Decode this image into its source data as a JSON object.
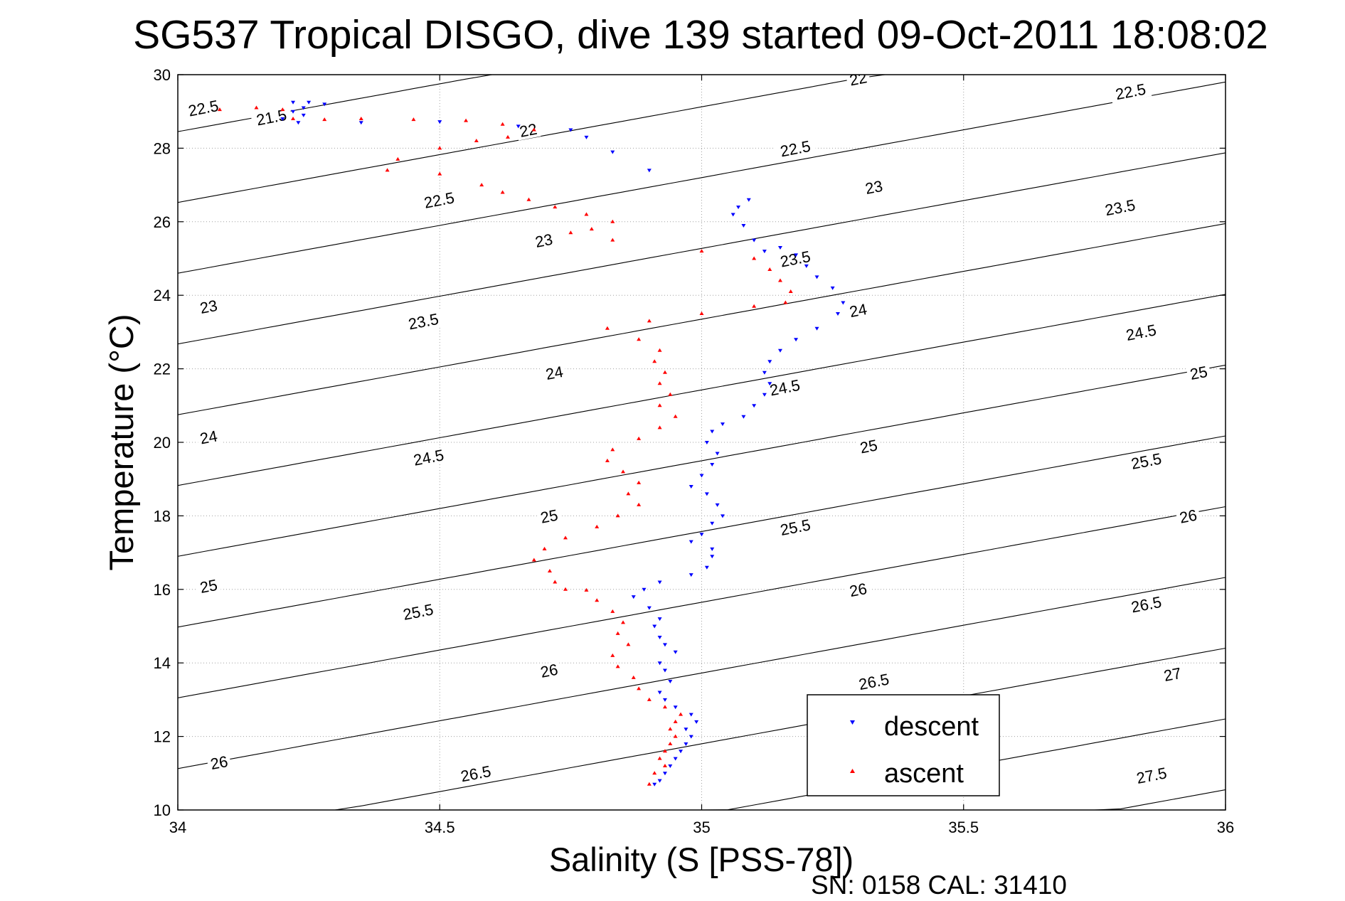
{
  "chart_data": {
    "type": "scatter",
    "title": "SG537 Tropical DISGO, dive 139 started 09-Oct-2011 18:08:02",
    "xlabel": "Salinity (S [PSS-78])",
    "ylabel": "Temperature (°C)",
    "xlim": [
      34,
      36
    ],
    "ylim": [
      10,
      30
    ],
    "xticks": [
      "34",
      "34.5",
      "35",
      "35.5",
      "36"
    ],
    "yticks": [
      "10",
      "12",
      "14",
      "16",
      "18",
      "20",
      "22",
      "24",
      "26",
      "28",
      "30"
    ],
    "grid": true,
    "legend_position": "bottom-right",
    "footer": "SN: 0158  CAL: 31410",
    "colors": {
      "descent": "#0000ff",
      "ascent": "#ff0000",
      "contour": "#000000",
      "grid": "#a0a0a0"
    },
    "series": [
      {
        "name": "descent",
        "marker": "triangle-down",
        "color": "#0000ff",
        "points": [
          [
            34.22,
            29.25
          ],
          [
            34.25,
            29.25
          ],
          [
            34.28,
            29.2
          ],
          [
            34.24,
            29.1
          ],
          [
            34.22,
            29.0
          ],
          [
            34.24,
            28.9
          ],
          [
            34.2,
            28.8
          ],
          [
            34.23,
            28.7
          ],
          [
            34.35,
            28.7
          ],
          [
            34.5,
            28.72
          ],
          [
            34.65,
            28.6
          ],
          [
            34.75,
            28.5
          ],
          [
            34.78,
            28.3
          ],
          [
            34.83,
            27.9
          ],
          [
            34.9,
            27.4
          ],
          [
            35.09,
            26.6
          ],
          [
            35.07,
            26.4
          ],
          [
            35.06,
            26.2
          ],
          [
            35.08,
            25.9
          ],
          [
            35.1,
            25.5
          ],
          [
            35.12,
            25.2
          ],
          [
            35.15,
            25.3
          ],
          [
            35.18,
            25.1
          ],
          [
            35.2,
            24.8
          ],
          [
            35.22,
            24.5
          ],
          [
            35.25,
            24.2
          ],
          [
            35.27,
            23.8
          ],
          [
            35.26,
            23.5
          ],
          [
            35.22,
            23.1
          ],
          [
            35.18,
            22.8
          ],
          [
            35.15,
            22.5
          ],
          [
            35.13,
            22.2
          ],
          [
            35.12,
            21.9
          ],
          [
            35.13,
            21.6
          ],
          [
            35.12,
            21.3
          ],
          [
            35.1,
            21.0
          ],
          [
            35.08,
            20.7
          ],
          [
            35.04,
            20.5
          ],
          [
            35.02,
            20.3
          ],
          [
            35.01,
            20.0
          ],
          [
            35.03,
            19.7
          ],
          [
            35.02,
            19.4
          ],
          [
            35.0,
            19.1
          ],
          [
            34.98,
            18.8
          ],
          [
            35.01,
            18.6
          ],
          [
            35.03,
            18.3
          ],
          [
            35.04,
            18.0
          ],
          [
            35.02,
            17.8
          ],
          [
            35.0,
            17.5
          ],
          [
            34.98,
            17.3
          ],
          [
            35.02,
            17.1
          ],
          [
            35.02,
            16.9
          ],
          [
            35.01,
            16.6
          ],
          [
            34.98,
            16.4
          ],
          [
            34.92,
            16.2
          ],
          [
            34.89,
            16.0
          ],
          [
            34.87,
            15.8
          ],
          [
            34.9,
            15.5
          ],
          [
            34.92,
            15.2
          ],
          [
            34.91,
            15.0
          ],
          [
            34.92,
            14.7
          ],
          [
            34.93,
            14.5
          ],
          [
            34.95,
            14.3
          ],
          [
            34.92,
            14.0
          ],
          [
            34.93,
            13.8
          ],
          [
            34.94,
            13.5
          ],
          [
            34.92,
            13.2
          ],
          [
            34.93,
            13.0
          ],
          [
            34.95,
            12.8
          ],
          [
            34.98,
            12.6
          ],
          [
            34.99,
            12.4
          ],
          [
            34.97,
            12.2
          ],
          [
            34.98,
            12.0
          ],
          [
            34.97,
            11.8
          ],
          [
            34.96,
            11.6
          ],
          [
            34.95,
            11.4
          ],
          [
            34.94,
            11.2
          ],
          [
            34.93,
            11.0
          ],
          [
            34.92,
            10.8
          ],
          [
            34.91,
            10.7
          ]
        ]
      },
      {
        "name": "ascent",
        "marker": "triangle-up",
        "color": "#ff0000",
        "points": [
          [
            34.08,
            29.05
          ],
          [
            34.15,
            29.1
          ],
          [
            34.2,
            29.05
          ],
          [
            34.22,
            28.8
          ],
          [
            34.28,
            28.78
          ],
          [
            34.35,
            28.8
          ],
          [
            34.45,
            28.78
          ],
          [
            34.55,
            28.75
          ],
          [
            34.62,
            28.65
          ],
          [
            34.68,
            28.5
          ],
          [
            34.63,
            28.3
          ],
          [
            34.57,
            28.2
          ],
          [
            34.5,
            28.0
          ],
          [
            34.42,
            27.7
          ],
          [
            34.4,
            27.4
          ],
          [
            34.5,
            27.3
          ],
          [
            34.58,
            27.0
          ],
          [
            34.62,
            26.8
          ],
          [
            34.67,
            26.6
          ],
          [
            34.72,
            26.4
          ],
          [
            34.78,
            26.2
          ],
          [
            34.83,
            26.0
          ],
          [
            34.79,
            25.8
          ],
          [
            34.75,
            25.7
          ],
          [
            34.83,
            25.5
          ],
          [
            35.0,
            25.2
          ],
          [
            35.1,
            25.0
          ],
          [
            35.13,
            24.7
          ],
          [
            35.15,
            24.4
          ],
          [
            35.17,
            24.1
          ],
          [
            35.16,
            23.8
          ],
          [
            35.1,
            23.7
          ],
          [
            35.0,
            23.5
          ],
          [
            34.9,
            23.3
          ],
          [
            34.82,
            23.1
          ],
          [
            34.88,
            22.8
          ],
          [
            34.92,
            22.5
          ],
          [
            34.91,
            22.2
          ],
          [
            34.93,
            21.9
          ],
          [
            34.92,
            21.6
          ],
          [
            34.94,
            21.3
          ],
          [
            34.92,
            21.0
          ],
          [
            34.95,
            20.7
          ],
          [
            34.92,
            20.4
          ],
          [
            34.88,
            20.1
          ],
          [
            34.83,
            19.8
          ],
          [
            34.82,
            19.5
          ],
          [
            34.85,
            19.2
          ],
          [
            34.88,
            18.9
          ],
          [
            34.86,
            18.6
          ],
          [
            34.88,
            18.3
          ],
          [
            34.84,
            18.0
          ],
          [
            34.8,
            17.7
          ],
          [
            34.74,
            17.4
          ],
          [
            34.7,
            17.1
          ],
          [
            34.68,
            16.8
          ],
          [
            34.71,
            16.5
          ],
          [
            34.72,
            16.2
          ],
          [
            34.74,
            16.0
          ],
          [
            34.78,
            15.98
          ],
          [
            34.8,
            15.7
          ],
          [
            34.83,
            15.4
          ],
          [
            34.85,
            15.1
          ],
          [
            34.84,
            14.8
          ],
          [
            34.86,
            14.5
          ],
          [
            34.83,
            14.2
          ],
          [
            34.84,
            13.9
          ],
          [
            34.87,
            13.6
          ],
          [
            34.88,
            13.3
          ],
          [
            34.9,
            13.0
          ],
          [
            34.93,
            12.8
          ],
          [
            34.96,
            12.6
          ],
          [
            34.95,
            12.4
          ],
          [
            34.94,
            12.2
          ],
          [
            34.95,
            12.0
          ],
          [
            34.94,
            11.8
          ],
          [
            34.93,
            11.6
          ],
          [
            34.92,
            11.4
          ],
          [
            34.93,
            11.2
          ],
          [
            34.91,
            11.0
          ],
          [
            34.9,
            10.7
          ]
        ]
      }
    ],
    "contour_lines": {
      "levels": [
        "21.5",
        "22",
        "22.5",
        "23",
        "23.5",
        "24",
        "24.5",
        "25",
        "25.5",
        "26",
        "26.5",
        "27",
        "27.5"
      ],
      "labels": [
        {
          "text": "21.5",
          "s": 34.18,
          "t": 28.75
        },
        {
          "text": "22",
          "s": 34.67,
          "t": 28.4
        },
        {
          "text": "22",
          "s": 35.3,
          "t": 29.8
        },
        {
          "text": "22.5",
          "s": 34.05,
          "t": 29.0
        },
        {
          "text": "22.5",
          "s": 34.5,
          "t": 26.5
        },
        {
          "text": "22.5",
          "s": 35.18,
          "t": 27.9
        },
        {
          "text": "22.5",
          "s": 35.82,
          "t": 29.45
        },
        {
          "text": "23",
          "s": 34.06,
          "t": 23.6
        },
        {
          "text": "23",
          "s": 34.7,
          "t": 25.4
        },
        {
          "text": "23",
          "s": 35.33,
          "t": 26.85
        },
        {
          "text": "23.5",
          "s": 34.47,
          "t": 23.2
        },
        {
          "text": "23.5",
          "s": 35.18,
          "t": 24.9
        },
        {
          "text": "23.5",
          "s": 35.8,
          "t": 26.3
        },
        {
          "text": "24",
          "s": 34.06,
          "t": 20.05
        },
        {
          "text": "24",
          "s": 34.72,
          "t": 21.8
        },
        {
          "text": "24",
          "s": 35.3,
          "t": 23.5
        },
        {
          "text": "24.5",
          "s": 34.48,
          "t": 19.5
        },
        {
          "text": "24.5",
          "s": 35.16,
          "t": 21.4
        },
        {
          "text": "24.5",
          "s": 35.84,
          "t": 22.9
        },
        {
          "text": "25",
          "s": 34.06,
          "t": 16.0
        },
        {
          "text": "25",
          "s": 34.71,
          "t": 17.9
        },
        {
          "text": "25",
          "s": 35.32,
          "t": 19.8
        },
        {
          "text": "25",
          "s": 35.95,
          "t": 21.8
        },
        {
          "text": "25.5",
          "s": 34.46,
          "t": 15.3
        },
        {
          "text": "25.5",
          "s": 35.18,
          "t": 17.6
        },
        {
          "text": "25.5",
          "s": 35.85,
          "t": 19.4
        },
        {
          "text": "26",
          "s": 34.08,
          "t": 11.2
        },
        {
          "text": "26",
          "s": 34.71,
          "t": 13.7
        },
        {
          "text": "26",
          "s": 35.3,
          "t": 15.9
        },
        {
          "text": "26",
          "s": 35.93,
          "t": 17.9
        },
        {
          "text": "26.5",
          "s": 34.57,
          "t": 10.9
        },
        {
          "text": "26.5",
          "s": 35.33,
          "t": 13.4
        },
        {
          "text": "26.5",
          "s": 35.85,
          "t": 15.5
        },
        {
          "text": "27",
          "s": 35.9,
          "t": 13.6
        },
        {
          "text": "27.5",
          "s": 35.86,
          "t": 10.85
        }
      ]
    }
  }
}
